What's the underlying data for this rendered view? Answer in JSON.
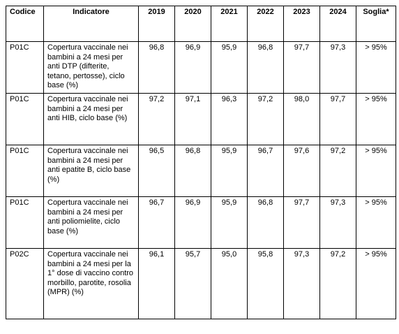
{
  "table": {
    "headers": [
      "Codice",
      "Indicatore",
      "2019",
      "2020",
      "2021",
      "2022",
      "2023",
      "2024",
      "Soglia*"
    ],
    "rows": [
      {
        "code": "P01C",
        "indicator": "Copertura vaccinale nei bambini a 24 mesi per anti DTP (difterite, tetano, pertosse), ciclo base (%)",
        "values": [
          "96,8",
          "96,9",
          "95,9",
          "96,8",
          "97,7",
          "97,3"
        ],
        "threshold": "> 95%"
      },
      {
        "code": "P01C",
        "indicator": "Copertura vaccinale nei bambini a 24 mesi per anti HIB, ciclo base (%)",
        "values": [
          "97,2",
          "97,1",
          "96,3",
          "97,2",
          "98,0",
          "97,7"
        ],
        "threshold": "> 95%"
      },
      {
        "code": "P01C",
        "indicator": "Copertura vaccinale nei bambini a 24 mesi per anti epatite B, ciclo base (%)",
        "values": [
          "96,5",
          "96,8",
          "95,9",
          "96,7",
          "97,6",
          "97,2"
        ],
        "threshold": "> 95%"
      },
      {
        "code": "P01C",
        "indicator": "Copertura vaccinale nei bambini a 24 mesi per anti poliomielite, ciclo base (%)",
        "values": [
          "96,7",
          "96,9",
          "95,9",
          "96,8",
          "97,7",
          "97,3"
        ],
        "threshold": "> 95%"
      },
      {
        "code": "P02C",
        "indicator": "Copertura vaccinale nei bambini a 24 mesi per la 1° dose di vaccino contro morbillo, parotite, rosolia (MPR) (%)",
        "values": [
          "96,1",
          "95,7",
          "95,0",
          "95,8",
          "97,3",
          "97,2"
        ],
        "threshold": "> 95%"
      }
    ]
  }
}
